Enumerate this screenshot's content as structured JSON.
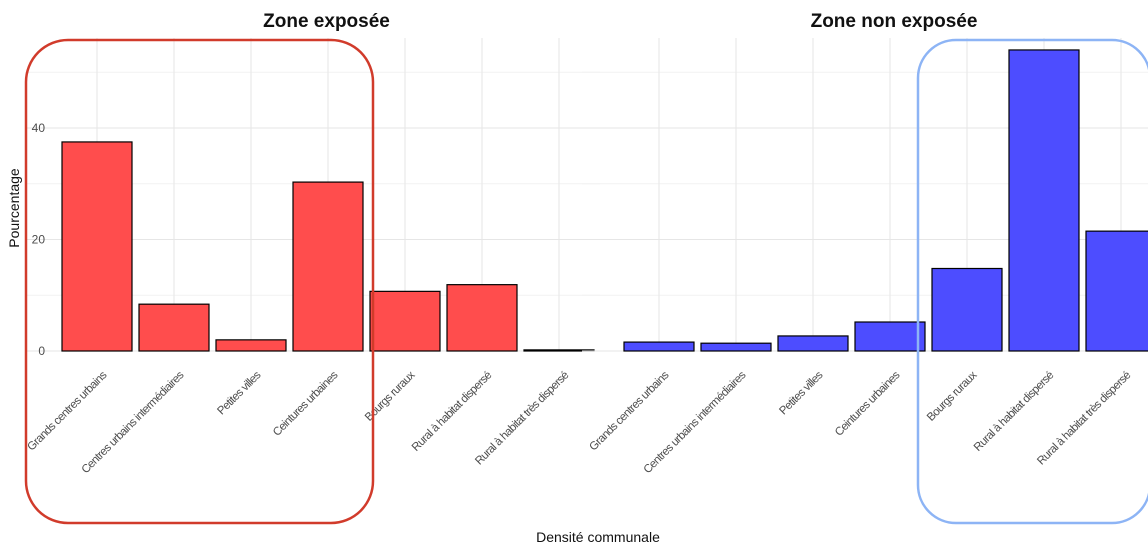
{
  "chart_data": {
    "type": "bar",
    "xlabel": "Densité communale",
    "ylabel": "Pourcentage",
    "ylim": [
      0,
      56
    ],
    "yticks": [
      0,
      20,
      40
    ],
    "categories": [
      "Grands centres urbains",
      "Centres urbains intermédiaires",
      "Petites villes",
      "Ceintures urbaines",
      "Bourgs ruraux",
      "Rural à habitat dispersé",
      "Rural à habitat très dispersé"
    ],
    "panels": [
      {
        "title": "Zone exposée",
        "color": "#ff4d4d",
        "highlight_color": "#d13b2b",
        "values": [
          37.5,
          8.4,
          2.0,
          30.3,
          10.7,
          11.9,
          0.2
        ]
      },
      {
        "title": "Zone non exposée",
        "color": "#4d4dff",
        "highlight_color": "#8db4f5",
        "values": [
          1.6,
          1.4,
          2.7,
          5.2,
          14.8,
          54.0,
          21.5
        ]
      }
    ]
  }
}
